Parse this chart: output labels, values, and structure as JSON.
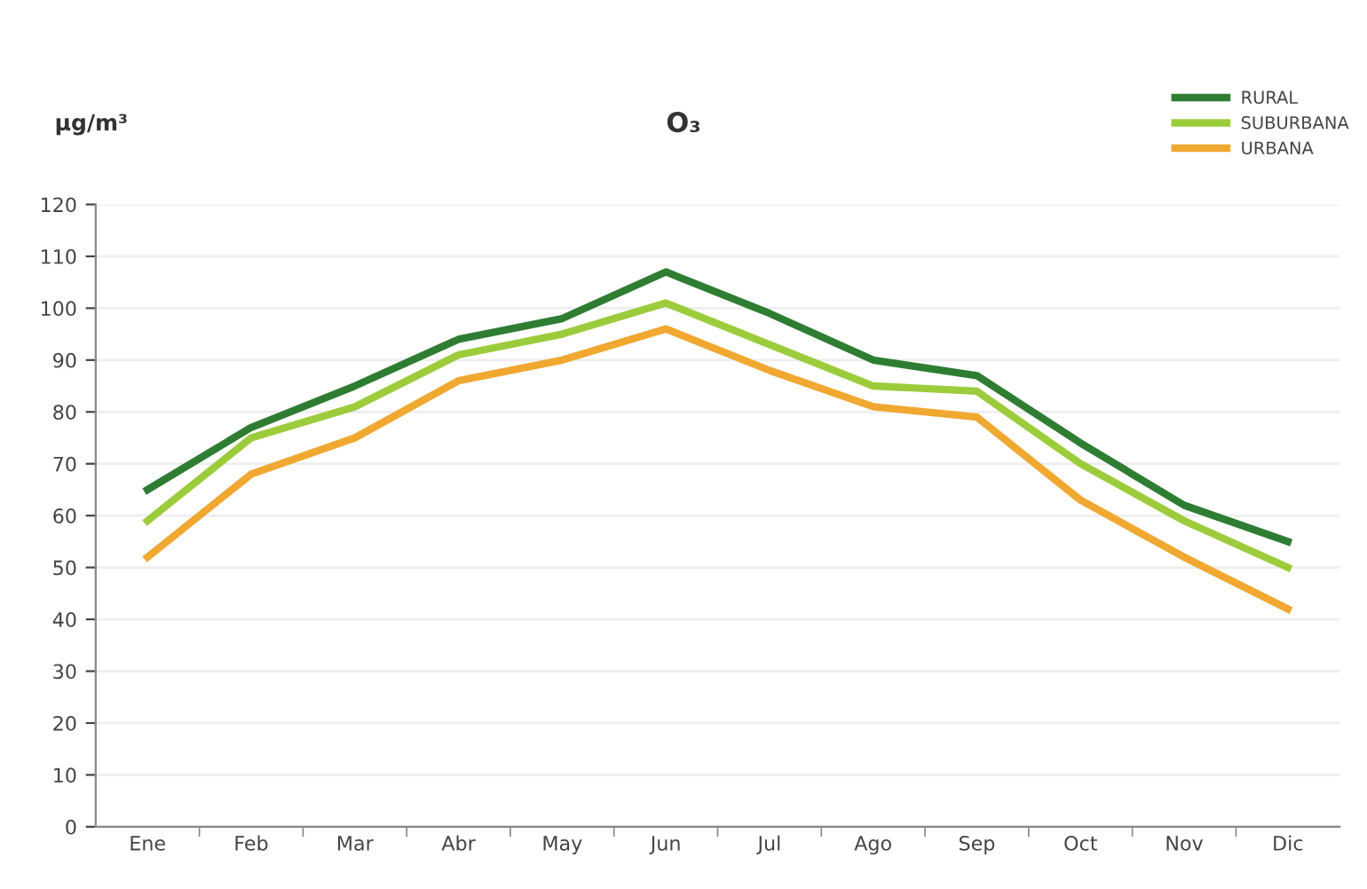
{
  "chart_data": {
    "type": "line",
    "title": "O₃",
    "ylabel": "μg/m³",
    "categories": [
      "Ene",
      "Feb",
      "Mar",
      "Abr",
      "May",
      "Jun",
      "Jul",
      "Ago",
      "Sep",
      "Oct",
      "Nov",
      "Dic"
    ],
    "series": [
      {
        "name": "RURAL",
        "color": "#2e7d32",
        "values": [
          65,
          77,
          85,
          94,
          98,
          107,
          99,
          90,
          87,
          74,
          62,
          55
        ]
      },
      {
        "name": "SUBURBANA",
        "color": "#9ccc3c",
        "values": [
          59,
          75,
          81,
          91,
          95,
          101,
          93,
          85,
          84,
          70,
          59,
          50
        ]
      },
      {
        "name": "URBANA",
        "color": "#f0a830",
        "values": [
          52,
          68,
          75,
          86,
          90,
          96,
          88,
          81,
          79,
          63,
          52,
          42
        ]
      }
    ],
    "ylim": [
      0,
      120
    ],
    "yticks": [
      0,
      10,
      20,
      30,
      40,
      50,
      60,
      70,
      80,
      90,
      100,
      110,
      120
    ],
    "grid": "y",
    "legend": "top right",
    "marker": "none",
    "line_style": "solid"
  }
}
